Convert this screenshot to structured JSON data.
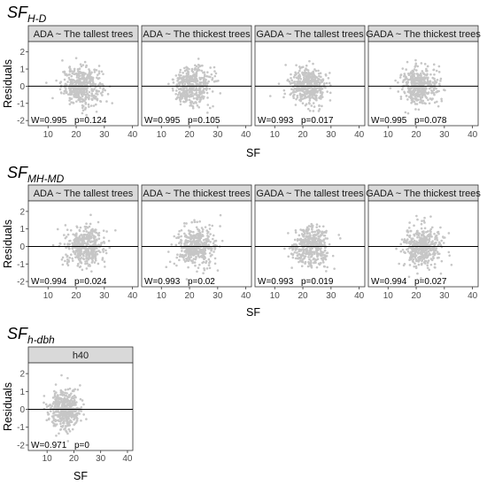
{
  "chart_data": [
    {
      "type": "scatter",
      "title": "SF",
      "title_subscript": "H-D",
      "xlabel": "SF",
      "ylabel": "Residuals",
      "xlim": [
        3,
        42
      ],
      "ylim": [
        -2.3,
        2.6
      ],
      "x_ticks": [
        10,
        20,
        30,
        40
      ],
      "y_ticks": [
        -2,
        -1,
        0,
        1,
        2
      ],
      "reference_line_y": 0,
      "panels": [
        {
          "label": "ADA ~ The tallest trees",
          "W": "W=0.995",
          "p": "p=0.124",
          "x_center": 22,
          "x_spread": 3.6
        },
        {
          "label": "ADA ~ The thickest trees",
          "W": "W=0.995",
          "p": "p=0.105",
          "x_center": 21,
          "x_spread": 3.4
        },
        {
          "label": "GADA ~ The tallest trees",
          "W": "W=0.993",
          "p": "p=0.017",
          "x_center": 22,
          "x_spread": 3.4
        },
        {
          "label": "GADA ~ The thickest trees",
          "W": "W=0.995",
          "p": "p=0.078",
          "x_center": 21,
          "x_spread": 3.4
        }
      ]
    },
    {
      "type": "scatter",
      "title": "SF",
      "title_subscript": "MH-MD",
      "xlabel": "SF",
      "ylabel": "Residuals",
      "xlim": [
        3,
        42
      ],
      "ylim": [
        -2.3,
        2.6
      ],
      "x_ticks": [
        10,
        20,
        30,
        40
      ],
      "y_ticks": [
        -2,
        -1,
        0,
        1,
        2
      ],
      "reference_line_y": 0,
      "panels": [
        {
          "label": "ADA ~ The tallest trees",
          "W": "W=0.994",
          "p": "p=0.024",
          "x_center": 23,
          "x_spread": 3.6
        },
        {
          "label": "ADA ~ The thickest trees",
          "W": "W=0.993",
          "p": "p=0.02",
          "x_center": 22,
          "x_spread": 3.4
        },
        {
          "label": "GADA ~ The tallest trees",
          "W": "W=0.993",
          "p": "p=0.019",
          "x_center": 23,
          "x_spread": 3.4
        },
        {
          "label": "GADA ~ The thickest trees",
          "W": "W=0.994",
          "p": "p=0.027",
          "x_center": 22,
          "x_spread": 3.4
        }
      ]
    },
    {
      "type": "scatter",
      "title": "SF",
      "title_subscript": "h-dbh",
      "xlabel": "SF",
      "ylabel": "Residuals",
      "xlim": [
        3,
        42
      ],
      "ylim": [
        -2.3,
        2.6
      ],
      "x_ticks": [
        10,
        20,
        30,
        40
      ],
      "y_ticks": [
        -2,
        -1,
        0,
        1,
        2
      ],
      "reference_line_y": 0,
      "panels": [
        {
          "label": "h40",
          "W": "W=0.971",
          "p": "p=0",
          "x_center": 17,
          "x_spread": 3.0
        }
      ]
    }
  ]
}
